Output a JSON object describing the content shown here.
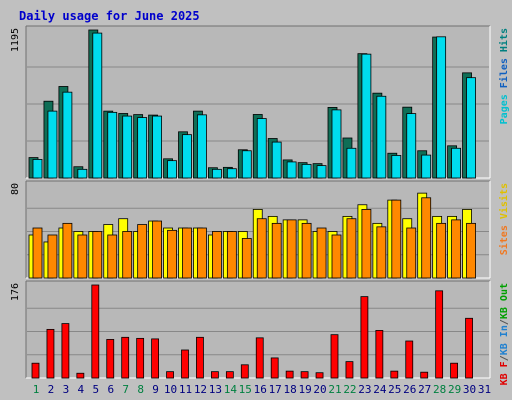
{
  "chart_data": {
    "type": "bar",
    "title": "Daily usage for June 2025",
    "x": [
      "1",
      "2",
      "3",
      "4",
      "5",
      "6",
      "7",
      "8",
      "9",
      "10",
      "11",
      "12",
      "13",
      "14",
      "15",
      "16",
      "17",
      "18",
      "19",
      "20",
      "21",
      "22",
      "23",
      "24",
      "25",
      "26",
      "27",
      "28",
      "29",
      "30",
      "31"
    ],
    "weekend_days": [
      "1",
      "7",
      "8",
      "14",
      "15",
      "21",
      "22",
      "28",
      "29"
    ],
    "panels": [
      {
        "id": "hits-files-pages",
        "ymax_label": "1195",
        "ymax": 1195,
        "right_labels": [
          {
            "text": "Pages",
            "color": "#00c0d0"
          },
          {
            "text": "Files",
            "color": "#1060c0"
          },
          {
            "text": "Hits",
            "color": "#008080"
          }
        ],
        "series": [
          {
            "name": "Hits",
            "color": "#0f6e56",
            "values": [
              165,
              620,
              739,
              91,
              1195,
              540,
              521,
              512,
              508,
              155,
              373,
              540,
              83,
              86,
              228,
              513,
              319,
              146,
              124,
              116,
              570,
              323,
              1004,
              685,
              200,
              572,
              220,
              1138,
              260,
              849,
              0
            ]
          },
          {
            "name": "Pages",
            "color": "#00ddee",
            "values": [
              150,
              540,
              693,
              70,
              1170,
              530,
              500,
              488,
              500,
              140,
              350,
              510,
              70,
              75,
              220,
              480,
              290,
              130,
              110,
              100,
              550,
              240,
              1000,
              660,
              182,
              520,
              185,
              1140,
              240,
              810,
              0
            ]
          }
        ]
      },
      {
        "id": "visits-sites",
        "ymax_label": "80",
        "ymax": 80,
        "right_labels": [
          {
            "text": "Sites",
            "color": "#f07820"
          },
          {
            "text": "Visits",
            "color": "#e0c000"
          }
        ],
        "series": [
          {
            "name": "Visits",
            "color": "#ffff00",
            "values": [
              37,
              31,
              43,
              40,
              40,
              46,
              51,
              40,
              49,
              43,
              43,
              43,
              37,
              40,
              40,
              59,
              53,
              50,
              50,
              40,
              40,
              53,
              63,
              47,
              67,
              51,
              73,
              53,
              53,
              59,
              0
            ]
          },
          {
            "name": "Sites",
            "color": "#ff8800",
            "values": [
              43,
              37,
              47,
              37,
              40,
              37,
              40,
              46,
              49,
              41,
              43,
              43,
              40,
              40,
              34,
              51,
              47,
              50,
              47,
              43,
              37,
              51,
              59,
              44,
              67,
              43,
              69,
              47,
              50,
              47,
              0
            ]
          }
        ]
      },
      {
        "id": "kbytes",
        "ymax_label": "176",
        "ymax": 176,
        "right_labels": [
          {
            "text": "KB F",
            "color": "#e00000"
          },
          {
            "text": "/",
            "color": "#555555"
          },
          {
            "text": "KB In",
            "color": "#2080d0"
          },
          {
            "text": "/",
            "color": "#555555"
          },
          {
            "text": "KB Out",
            "color": "#00a000"
          }
        ],
        "series": [
          {
            "name": "KB F",
            "color": "#ff0000",
            "values": [
              28,
              92,
              103,
              9,
              176,
              73,
              77,
              75,
              74,
              12,
              53,
              77,
              12,
              12,
              25,
              76,
              38,
              13,
              12,
              10,
              82,
              31,
              154,
              90,
              13,
              70,
              11,
              165,
              28,
              113,
              0
            ]
          }
        ]
      }
    ]
  },
  "colors": {
    "frame": "#c0c0c0",
    "panel": "#b8b8b8",
    "grid": "#888888",
    "title": "#0000cc",
    "weekday_label": "#000080",
    "weekend_label": "#008040",
    "bar_outline": "#000000"
  }
}
